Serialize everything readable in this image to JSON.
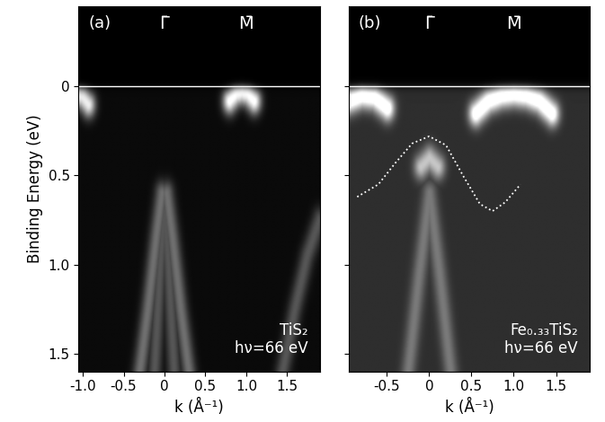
{
  "chart_data": [
    {
      "type": "image",
      "panel": "(a)",
      "annotations": [
        "TiS₂",
        "hν=66 eV"
      ],
      "points_labels": [
        {
          "label": "Γ̄",
          "k": 0
        },
        {
          "label": "M̄",
          "k": 1.0
        }
      ],
      "xlabel": "k (Å⁻¹)",
      "ylabel": "Binding Energy (eV)",
      "xlim": [
        -1.05,
        1.9
      ],
      "ylim": [
        1.6,
        -0.45
      ],
      "xticks": [
        -1.0,
        -0.5,
        0,
        0.5,
        1.0,
        1.5
      ],
      "yticks": [
        0,
        0.5,
        1.0,
        1.5
      ],
      "tick_labels": true,
      "fermi_level": 0,
      "background": 0.04,
      "features": [
        {
          "k": [
            0.8,
            0.88,
            0.95,
            1.02,
            1.1
          ],
          "energy": [
            0.08,
            0.04,
            0.03,
            0.04,
            0.08
          ],
          "intensity": 1.0
        },
        {
          "k": [
            -1.05,
            -1.0,
            -0.93
          ],
          "energy": [
            0.05,
            0.06,
            0.1
          ],
          "intensity": 0.9
        },
        {
          "k": [
            -0.3,
            -0.2,
            -0.1,
            -0.03
          ],
          "energy": [
            1.6,
            1.25,
            0.85,
            0.6
          ],
          "intensity": 0.4
        },
        {
          "k": [
            0.03,
            0.1,
            0.2,
            0.3
          ],
          "energy": [
            0.6,
            0.85,
            1.25,
            1.6
          ],
          "intensity": 0.4
        },
        {
          "k": [
            -0.12,
            -0.05,
            0,
            0.05,
            0.12
          ],
          "energy": [
            1.6,
            1.0,
            0.7,
            1.0,
            1.6
          ],
          "intensity": 0.3
        },
        {
          "k": [
            1.45,
            1.6,
            1.75,
            1.9
          ],
          "energy": [
            1.6,
            1.25,
            0.95,
            0.75
          ],
          "intensity": 0.3
        }
      ]
    },
    {
      "type": "image",
      "panel": "(b)",
      "annotations": [
        "Fe₀.₃₃TiS₂",
        "hν=66 eV"
      ],
      "points_labels": [
        {
          "label": "Γ̄",
          "k": 0
        },
        {
          "label": "M̄",
          "k": 1.0
        }
      ],
      "xlabel": "k (Å⁻¹)",
      "xlim": [
        -0.95,
        1.9
      ],
      "ylim": [
        1.6,
        -0.45
      ],
      "xticks": [
        -0.5,
        0,
        0.5,
        1.0,
        1.5
      ],
      "yticks": [
        0,
        0.5,
        1.0,
        1.5
      ],
      "tick_labels": "x",
      "fermi_level": 0,
      "background": 0.18,
      "features": [
        {
          "k": [
            0.55,
            0.7,
            0.85,
            1.0,
            1.15,
            1.3,
            1.45
          ],
          "energy": [
            0.15,
            0.08,
            0.05,
            0.04,
            0.05,
            0.08,
            0.15
          ],
          "intensity": 1.0
        },
        {
          "k": [
            -0.95,
            -0.8,
            -0.65,
            -0.5
          ],
          "energy": [
            0.08,
            0.05,
            0.06,
            0.12
          ],
          "intensity": 1.0
        },
        {
          "k": [
            -0.1,
            0,
            0.1
          ],
          "energy": [
            0.45,
            0.4,
            0.45
          ],
          "intensity": 0.6
        },
        {
          "k": [
            -0.25,
            -0.12,
            0,
            0.12,
            0.25
          ],
          "energy": [
            1.6,
            1.05,
            0.6,
            1.05,
            1.6
          ],
          "intensity": 0.3
        }
      ],
      "guide": {
        "k": [
          -0.85,
          -0.6,
          -0.4,
          -0.2,
          0,
          0.2,
          0.4,
          0.6,
          0.75,
          0.9,
          1.08
        ],
        "energy": [
          0.62,
          0.55,
          0.43,
          0.32,
          0.28,
          0.33,
          0.5,
          0.66,
          0.7,
          0.65,
          0.55
        ],
        "color": "white",
        "line_style": "dotted"
      }
    }
  ]
}
